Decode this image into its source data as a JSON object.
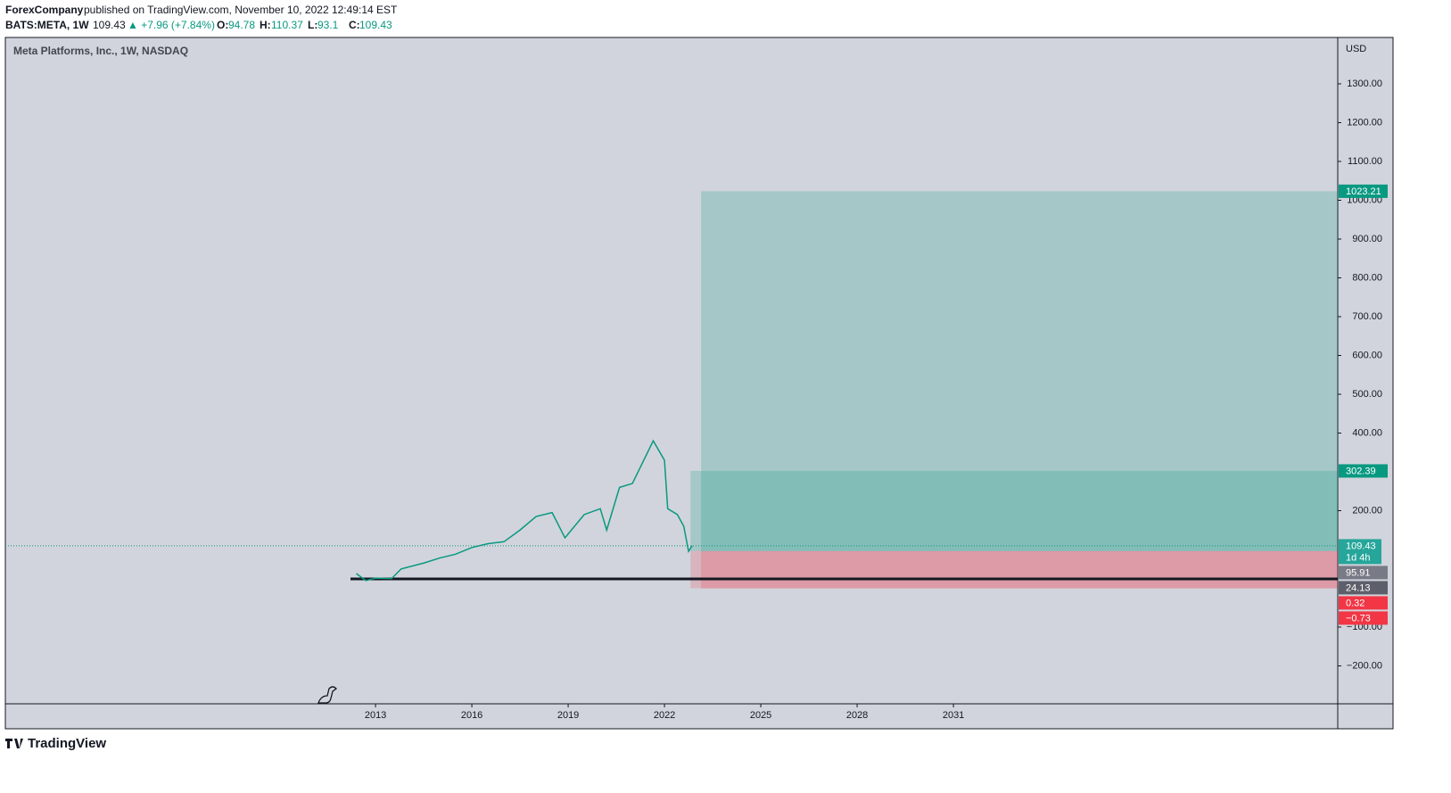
{
  "header": {
    "publisher": "ForexCompany",
    "published": "published on TradingView.com, November 10, 2022 12:49:14 EST",
    "symbol": "BATS:META, 1W",
    "price": 109.43,
    "change": "▲ +7.96 (+7.84%)",
    "ohlc": [
      {
        "label": "O:",
        "value": 94.78
      },
      {
        "label": "H:",
        "value": 110.37
      },
      {
        "label": "L:",
        "value": 93.1
      },
      {
        "label": "C:",
        "value": 109.43
      }
    ]
  },
  "logo": "TradingView",
  "chart_data": {
    "type": "line",
    "title": "Meta Platforms, Inc., 1W, NASDAQ",
    "currency": "USD",
    "color": "#089981",
    "x": [
      2012.4,
      2012.7,
      2013.0,
      2013.5,
      2013.8,
      2014.5,
      2015.0,
      2015.5,
      2016.0,
      2016.5,
      2017.0,
      2017.5,
      2018.0,
      2018.5,
      2018.9,
      2019.5,
      2020.0,
      2020.2,
      2020.6,
      2021.0,
      2021.65,
      2022.0,
      2022.1,
      2022.4,
      2022.6,
      2022.75,
      2022.86
    ],
    "series": [
      {
        "name": "META",
        "color": "#089981",
        "values": [
          38,
          20,
          26,
          25,
          50,
          65,
          78,
          88,
          105,
          115,
          120,
          150,
          185,
          195,
          130,
          190,
          205,
          150,
          260,
          270,
          380,
          330,
          205,
          190,
          160,
          95,
          109.43
        ]
      }
    ],
    "xlim": [
      2001.47,
      2042.97
    ],
    "xticks": [
      2013,
      2016,
      2019,
      2022,
      2025,
      2028,
      2031
    ],
    "ylim": [
      -297.7,
      1419.5
    ],
    "yticks": [
      {
        "value": 1300,
        "label": "1300.00"
      },
      {
        "value": 1200,
        "label": "1200.00"
      },
      {
        "value": 1100,
        "label": "1100.00"
      },
      {
        "value": 1000,
        "label": "1000.00"
      },
      {
        "value": 900,
        "label": "900.00"
      },
      {
        "value": 800,
        "label": "800.00"
      },
      {
        "value": 700,
        "label": "700.00"
      },
      {
        "value": 600,
        "label": "600.00"
      },
      {
        "value": 500,
        "label": "500.00"
      },
      {
        "value": 400,
        "label": "400.00"
      },
      {
        "value": 200,
        "label": "200.00"
      },
      {
        "value": -100,
        "label": "−100.00"
      },
      {
        "value": -200,
        "label": "−200.00"
      }
    ],
    "positions": [
      {
        "start": 2023.14,
        "entry": 95.91,
        "target": 1023.21,
        "stop": -0.73
      },
      {
        "start": 2022.81,
        "entry": 95.91,
        "target": 302.39,
        "stop": 0.32
      }
    ],
    "hline": {
      "start": 2012.22,
      "value": 24.13,
      "color": "#131722"
    },
    "price_labels": [
      {
        "value": 1023.21,
        "color": "#089981"
      },
      {
        "value": 302.39,
        "color": "#089981"
      },
      {
        "value": 109.43,
        "color": "#26a69a",
        "countdown": "1d 4h"
      },
      {
        "value": 95.91,
        "color": "#787b86"
      },
      {
        "value": 24.13,
        "color": "#5d606b"
      },
      {
        "value": 0.32,
        "color": "#f23645"
      },
      {
        "value": -0.73,
        "label": "−0.73",
        "color": "#f23645"
      }
    ]
  }
}
